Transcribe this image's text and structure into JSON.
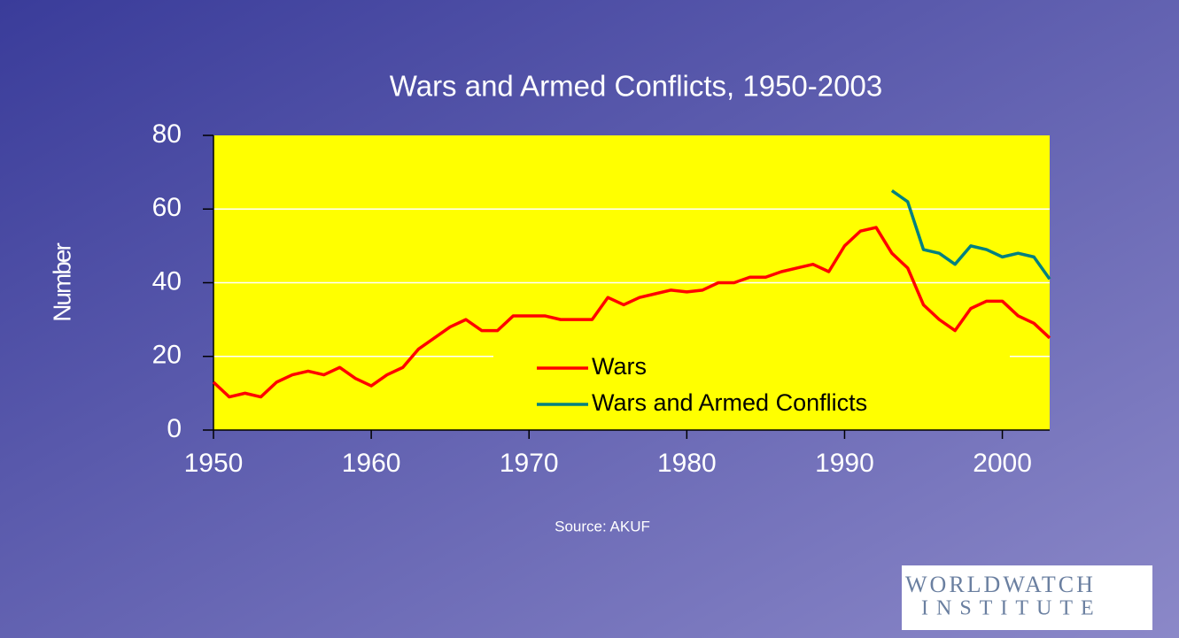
{
  "chart_data": {
    "type": "line",
    "title": "Wars and Armed Conflicts, 1950-2003",
    "y_label": "Number",
    "source": "Source:  AKUF",
    "logo": {
      "line1": "WORLDWATCH",
      "line2": "INSTITUTE"
    },
    "x": [
      1950,
      1951,
      1952,
      1953,
      1954,
      1955,
      1956,
      1957,
      1958,
      1959,
      1960,
      1961,
      1962,
      1963,
      1964,
      1965,
      1966,
      1967,
      1968,
      1969,
      1970,
      1971,
      1972,
      1973,
      1974,
      1975,
      1976,
      1977,
      1978,
      1979,
      1980,
      1981,
      1982,
      1983,
      1984,
      1985,
      1986,
      1987,
      1988,
      1989,
      1990,
      1991,
      1992,
      1993,
      1994,
      1995,
      1996,
      1997,
      1998,
      1999,
      2000,
      2001,
      2002,
      2003
    ],
    "series": [
      {
        "name": "Wars",
        "color": "#ff0000",
        "values": [
          13,
          9,
          10,
          9,
          13,
          15,
          16,
          15,
          17,
          14,
          12,
          15,
          17,
          22,
          25,
          28,
          30,
          27,
          27,
          31,
          31,
          31,
          30,
          30,
          30,
          36,
          34,
          36,
          37,
          38,
          37.5,
          38,
          40,
          40,
          41.5,
          41.5,
          43,
          44,
          45,
          43,
          50,
          54,
          55,
          48,
          44,
          34,
          30,
          27,
          33,
          35,
          35,
          31,
          29,
          25
        ]
      },
      {
        "name": "Wars and Armed Conflicts",
        "color": "#008080",
        "values": [
          null,
          null,
          null,
          null,
          null,
          null,
          null,
          null,
          null,
          null,
          null,
          null,
          null,
          null,
          null,
          null,
          null,
          null,
          null,
          null,
          null,
          null,
          null,
          null,
          null,
          null,
          null,
          null,
          null,
          null,
          null,
          null,
          null,
          null,
          null,
          null,
          null,
          null,
          null,
          null,
          null,
          null,
          null,
          65,
          62,
          49,
          48,
          45,
          50,
          49,
          47,
          48,
          47,
          41
        ]
      }
    ],
    "xlim": [
      1950,
      2003
    ],
    "xticks": [
      1950,
      1960,
      1970,
      1980,
      1990,
      2000
    ],
    "ylim": [
      0,
      80
    ],
    "yticks": [
      0,
      20,
      40,
      60,
      80
    ],
    "grid": true,
    "plot_color": "#ffff00"
  }
}
